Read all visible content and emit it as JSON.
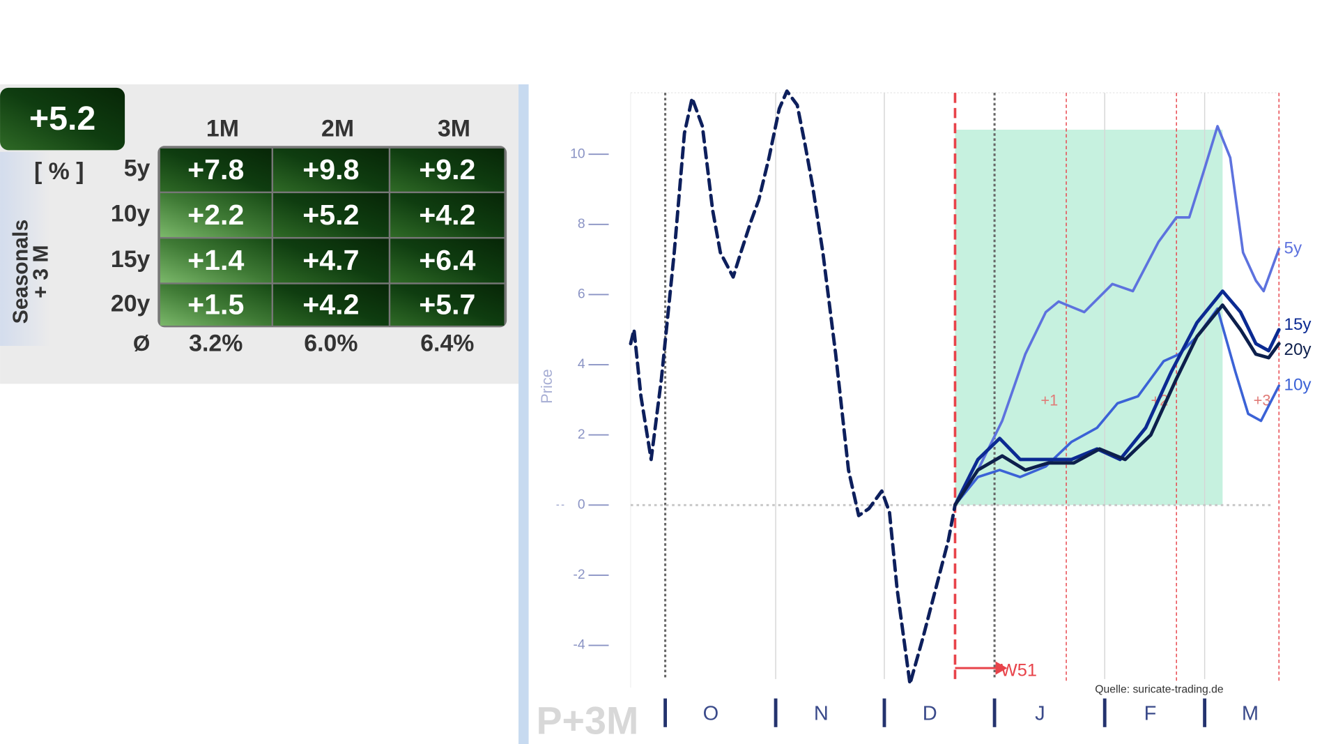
{
  "table": {
    "summary": "+5.2",
    "unit": "[ % ]",
    "side_label": [
      "Seasonals",
      "+ 3 M"
    ],
    "columns": [
      "1M",
      "2M",
      "3M"
    ],
    "rows": [
      {
        "label": "5y",
        "cells": [
          "+7.8",
          "+9.8",
          "+9.2"
        ]
      },
      {
        "label": "10y",
        "cells": [
          "+2.2",
          "+5.2",
          "+4.2"
        ]
      },
      {
        "label": "15y",
        "cells": [
          "+1.4",
          "+4.7",
          "+6.4"
        ]
      },
      {
        "label": "20y",
        "cells": [
          "+1.5",
          "+4.2",
          "+5.7"
        ]
      }
    ],
    "average": {
      "symbol": "Ø",
      "values": [
        "3.2%",
        "6.0%",
        "6.4%"
      ]
    }
  },
  "chart_data": {
    "type": "line",
    "y_label": "Price",
    "watermark": "P+3M",
    "source": "Quelle: suricate-trading.de",
    "annotations": [
      "W51",
      "+1",
      "+2",
      "+3"
    ],
    "xlim": [
      0,
      25.3
    ],
    "ylim": [
      -5.2,
      11.8
    ],
    "yticks": [
      -4,
      -2,
      0,
      2,
      4,
      6,
      8,
      10
    ],
    "xticks": [
      {
        "value": 1.35,
        "label": "O"
      },
      {
        "value": 5.66,
        "label": "N"
      },
      {
        "value": 9.9,
        "label": "D"
      },
      {
        "value": 14.2,
        "label": "J"
      },
      {
        "value": 18.5,
        "label": "F"
      },
      {
        "value": 22.4,
        "label": "M"
      }
    ],
    "emphasized_xticks": [
      0,
      3
    ],
    "event_lines": [
      12.66,
      17.0,
      21.3,
      25.3
    ],
    "highlight": {
      "x": [
        12.66,
        23.1
      ],
      "y": [
        0,
        10.7
      ],
      "color": "#c6f1df"
    },
    "grid": true,
    "series": [
      {
        "color": "#0d1f5c",
        "dashed": true,
        "x": [
          0,
          0.13,
          0.4,
          0.8,
          1.2,
          1.7,
          2.1,
          2.4,
          2.8,
          3.2,
          3.5,
          4.0,
          4.3,
          4.7,
          5.0,
          5.4,
          5.8,
          6.1,
          6.5,
          6.8,
          7.1,
          7.5,
          8.0,
          8.5,
          8.9,
          9.3,
          9.8,
          10.1,
          10.4,
          10.9,
          11.4,
          11.9,
          12.4,
          12.66
        ],
        "values": [
          4.6,
          5.0,
          3.1,
          1.3,
          3.6,
          7.2,
          10.6,
          11.6,
          10.8,
          8.4,
          7.2,
          6.5,
          7.2,
          8.1,
          8.7,
          9.9,
          11.3,
          11.8,
          11.4,
          10.3,
          9.1,
          7.2,
          4.3,
          1.0,
          -0.3,
          -0.1,
          0.4,
          -0.2,
          -2.4,
          -5.1,
          -3.8,
          -2.4,
          -1.0,
          0
        ]
      },
      {
        "name": "5y",
        "color": "#5d72de",
        "x": [
          12.66,
          13.55,
          14.5,
          15.4,
          16.2,
          16.7,
          17.7,
          18.8,
          19.6,
          20.6,
          21.3,
          21.8,
          22.4,
          22.9,
          23.4,
          23.9,
          24.4,
          24.7,
          25.3
        ],
        "values": [
          0,
          1.0,
          2.4,
          4.3,
          5.5,
          5.8,
          5.5,
          6.3,
          6.1,
          7.5,
          8.2,
          8.2,
          9.6,
          10.8,
          9.9,
          7.2,
          6.4,
          6.1,
          7.3
        ]
      },
      {
        "name": "10y",
        "color": "#3b62d6",
        "x": [
          12.66,
          13.55,
          14.4,
          15.2,
          16.2,
          17.2,
          18.2,
          19.0,
          19.8,
          20.8,
          21.4,
          22.1,
          22.9,
          23.6,
          24.1,
          24.6,
          25.3
        ],
        "values": [
          0,
          0.8,
          1.0,
          0.8,
          1.1,
          1.8,
          2.2,
          2.9,
          3.1,
          4.1,
          4.3,
          4.8,
          5.6,
          3.8,
          2.6,
          2.4,
          3.4
        ]
      },
      {
        "name": "15y",
        "color": "#0b2a92",
        "x": [
          12.66,
          13.55,
          14.4,
          15.2,
          16.2,
          17.2,
          18.2,
          19.1,
          20.1,
          21.1,
          22.1,
          23.1,
          23.8,
          24.4,
          24.9,
          25.3
        ],
        "values": [
          0,
          1.3,
          1.9,
          1.3,
          1.3,
          1.3,
          1.6,
          1.3,
          2.2,
          3.8,
          5.2,
          6.1,
          5.5,
          4.6,
          4.4,
          5.0
        ]
      },
      {
        "name": "20y",
        "color": "#0d1f4c",
        "x": [
          12.66,
          13.55,
          14.5,
          15.4,
          16.3,
          17.3,
          18.3,
          19.3,
          20.3,
          21.3,
          22.1,
          23.1,
          23.8,
          24.4,
          24.9,
          25.3
        ],
        "values": [
          0,
          1.0,
          1.4,
          1.0,
          1.2,
          1.2,
          1.6,
          1.3,
          2.0,
          3.6,
          4.8,
          5.7,
          5.0,
          4.3,
          4.2,
          4.6
        ]
      }
    ]
  }
}
